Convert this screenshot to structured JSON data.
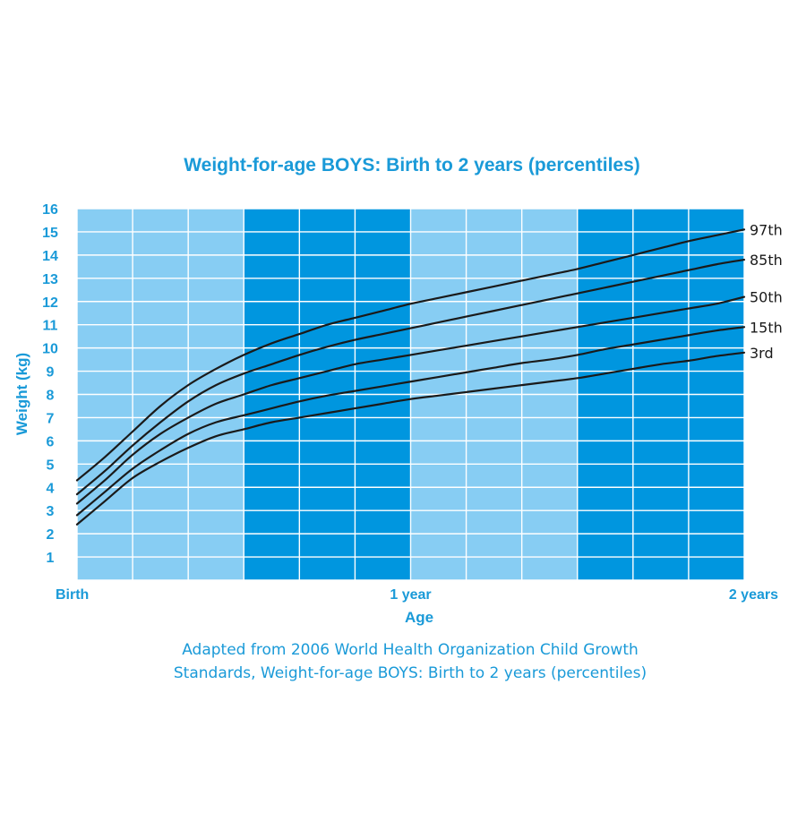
{
  "chart_data": {
    "type": "line",
    "title": "Weight-for-age BOYS: Birth to 2 years (percentiles)",
    "xlabel": "Age",
    "ylabel": "Weight (kg)",
    "x_unit": "months",
    "xlim": [
      0,
      24
    ],
    "ylim": [
      0,
      16
    ],
    "y_ticks": [
      1,
      2,
      3,
      4,
      5,
      6,
      7,
      8,
      9,
      10,
      11,
      12,
      13,
      14,
      15,
      16
    ],
    "x_ticks": [
      {
        "value": 0,
        "label": "Birth"
      },
      {
        "value": 12,
        "label": "1 year"
      },
      {
        "value": 24,
        "label": "2 years"
      }
    ],
    "grid": true,
    "x": [
      0,
      1,
      2,
      3,
      4,
      5,
      6,
      7,
      8,
      9,
      10,
      11,
      12,
      13,
      14,
      15,
      16,
      17,
      18,
      19,
      20,
      21,
      22,
      23,
      24
    ],
    "series": [
      {
        "name": "3rd",
        "values": [
          2.4,
          3.4,
          4.4,
          5.1,
          5.7,
          6.2,
          6.5,
          6.8,
          7.0,
          7.2,
          7.4,
          7.6,
          7.8,
          7.95,
          8.1,
          8.25,
          8.4,
          8.55,
          8.7,
          8.9,
          9.1,
          9.3,
          9.45,
          9.65,
          9.8
        ]
      },
      {
        "name": "15th",
        "values": [
          2.8,
          3.8,
          4.8,
          5.6,
          6.3,
          6.8,
          7.1,
          7.4,
          7.7,
          7.95,
          8.15,
          8.35,
          8.55,
          8.75,
          8.95,
          9.15,
          9.35,
          9.5,
          9.7,
          9.95,
          10.15,
          10.35,
          10.55,
          10.75,
          10.9
        ]
      },
      {
        "name": "50th",
        "values": [
          3.3,
          4.3,
          5.4,
          6.3,
          7.0,
          7.6,
          8.0,
          8.4,
          8.7,
          9.0,
          9.3,
          9.5,
          9.7,
          9.9,
          10.1,
          10.3,
          10.5,
          10.7,
          10.9,
          11.1,
          11.3,
          11.5,
          11.7,
          11.9,
          12.2
        ]
      },
      {
        "name": "85th",
        "values": [
          3.7,
          4.7,
          5.8,
          6.8,
          7.7,
          8.4,
          8.9,
          9.3,
          9.7,
          10.05,
          10.35,
          10.6,
          10.85,
          11.1,
          11.35,
          11.6,
          11.85,
          12.1,
          12.35,
          12.6,
          12.85,
          13.1,
          13.35,
          13.6,
          13.8
        ]
      },
      {
        "name": "97th",
        "values": [
          4.3,
          5.3,
          6.4,
          7.5,
          8.4,
          9.1,
          9.7,
          10.2,
          10.6,
          11.0,
          11.3,
          11.6,
          11.9,
          12.15,
          12.4,
          12.65,
          12.9,
          13.15,
          13.4,
          13.7,
          14.0,
          14.3,
          14.6,
          14.85,
          15.1
        ]
      }
    ],
    "background_bands": [
      {
        "from": 0,
        "to": 6,
        "color": "#87cdf3"
      },
      {
        "from": 6,
        "to": 12,
        "color": "#0096df"
      },
      {
        "from": 12,
        "to": 18,
        "color": "#87cdf3"
      },
      {
        "from": 18,
        "to": 24,
        "color": "#0096df"
      }
    ],
    "colors": {
      "text_accent": "#1a9ad8",
      "line": "#1a1a1a",
      "grid": "#ffffff"
    }
  },
  "caption_lines": [
    "Adapted from 2006 World Health Organization Child Growth",
    "Standards, Weight-for-age BOYS: Birth to 2 years (percentiles)"
  ]
}
